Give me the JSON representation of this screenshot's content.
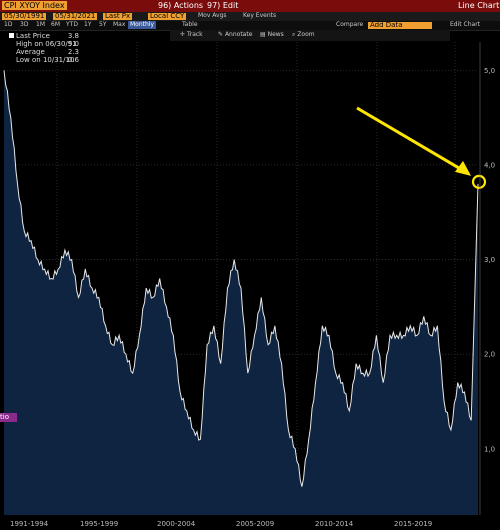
{
  "toolbar": {
    "ticker": "CPI XYOY Index",
    "actions": "96) Actions",
    "edit": "97) Edit",
    "chart_type": "Line Chart"
  },
  "controls": {
    "start_date": "05/30/1991",
    "end_date": "05/31/2021",
    "field": "Last Px",
    "currency": "Local CCY",
    "mov_avgs": "Mov Avgs",
    "key_events": "Key Events",
    "compare": "Compare",
    "add_data": "Add Data",
    "edit_chart": "Edit Chart"
  },
  "periods": [
    "1D",
    "3D",
    "1M",
    "6M",
    "YTD",
    "1Y",
    "5Y",
    "Max",
    "Monthly",
    "Table"
  ],
  "tools": [
    "Track",
    "Annotate",
    "News",
    "Zoom"
  ],
  "legend": [
    {
      "label": "Last Price",
      "value": "3.8"
    },
    {
      "label": "High on 06/30/91",
      "value": "5.0"
    },
    {
      "label": "Average",
      "value": "2.3"
    },
    {
      "label": "Low on 10/31/10",
      "value": "0.6"
    }
  ],
  "left_badge": "tio",
  "chart_data": {
    "type": "area",
    "title": "",
    "xlabel": "",
    "ylabel": "",
    "ylim": [
      0.3,
      5.3
    ],
    "x_ticks": [
      "1991-1994",
      "1995-1999",
      "2000-2004",
      "2005-2009",
      "2010-2014",
      "2015-2019"
    ],
    "y_ticks": [
      "1,0",
      "2,0",
      "3,0",
      "4,0",
      "5,0"
    ],
    "series": [
      {
        "name": "",
        "x_start_year": 1991.42,
        "step_years": 0.5,
        "values": [
          5.0,
          4.5,
          3.8,
          3.3,
          3.2,
          3.0,
          2.9,
          2.8,
          2.9,
          3.1,
          3.0,
          2.6,
          2.9,
          2.7,
          2.6,
          2.3,
          2.1,
          2.2,
          2.0,
          1.8,
          2.2,
          2.7,
          2.6,
          2.8,
          2.5,
          2.2,
          1.6,
          1.4,
          1.2,
          1.1,
          2.1,
          2.3,
          1.9,
          2.7,
          3.0,
          2.7,
          1.8,
          2.2,
          2.6,
          2.1,
          2.3,
          1.9,
          1.2,
          1.0,
          0.6,
          1.1,
          1.7,
          2.3,
          2.2,
          1.8,
          1.7,
          1.4,
          1.9,
          1.8,
          1.8,
          2.2,
          1.7,
          2.2,
          2.2,
          2.2,
          2.3,
          2.2,
          2.4,
          2.2,
          2.3,
          1.5,
          1.2,
          1.7,
          1.6,
          1.3,
          3.8
        ]
      }
    ],
    "annotation": "arrow-and-circle on last value",
    "colors": {
      "line": "#e8e8e8",
      "fill": "#0f2440",
      "annotation": "#ffe600"
    }
  }
}
